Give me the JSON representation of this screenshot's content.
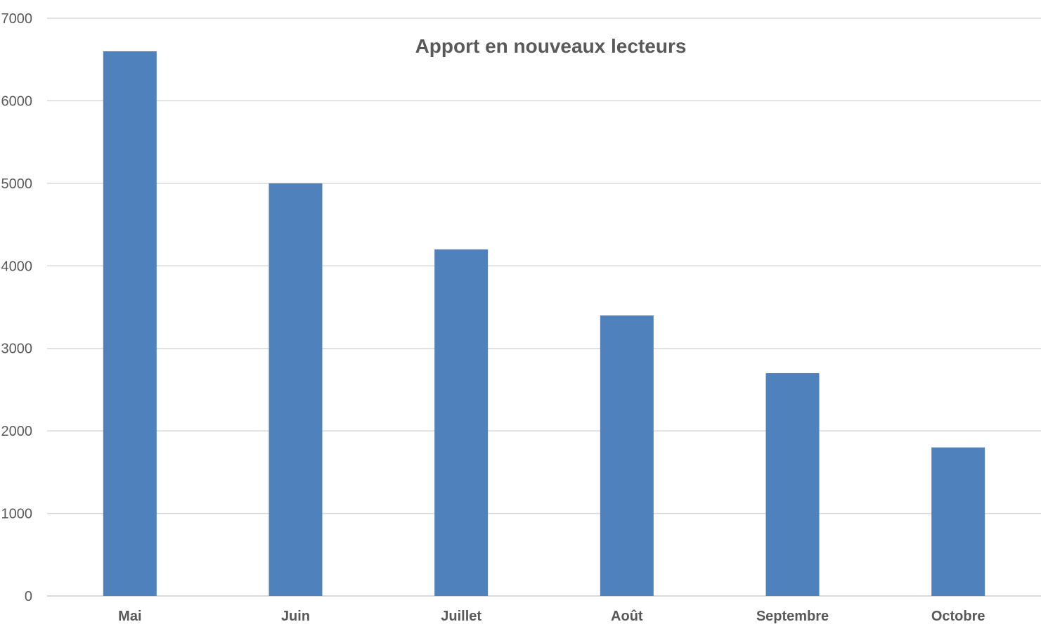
{
  "chart_data": {
    "type": "bar",
    "title": "Apport en nouveaux lecteurs",
    "xlabel": "",
    "ylabel": "",
    "categories": [
      "Mai",
      "Juin",
      "Juillet",
      "Août",
      "Septembre",
      "Octobre"
    ],
    "series": [
      {
        "name": "Apport en nouveaux lecteurs",
        "values": [
          6600,
          5000,
          4200,
          3400,
          2700,
          1800
        ]
      }
    ],
    "ylim": [
      0,
      7000
    ],
    "yticks": [
      0,
      1000,
      2000,
      3000,
      4000,
      5000,
      6000,
      7000
    ],
    "grid": true,
    "bar_color": "#4F81BD",
    "grid_color": "#D9D9D9",
    "text_color": "#595959"
  }
}
